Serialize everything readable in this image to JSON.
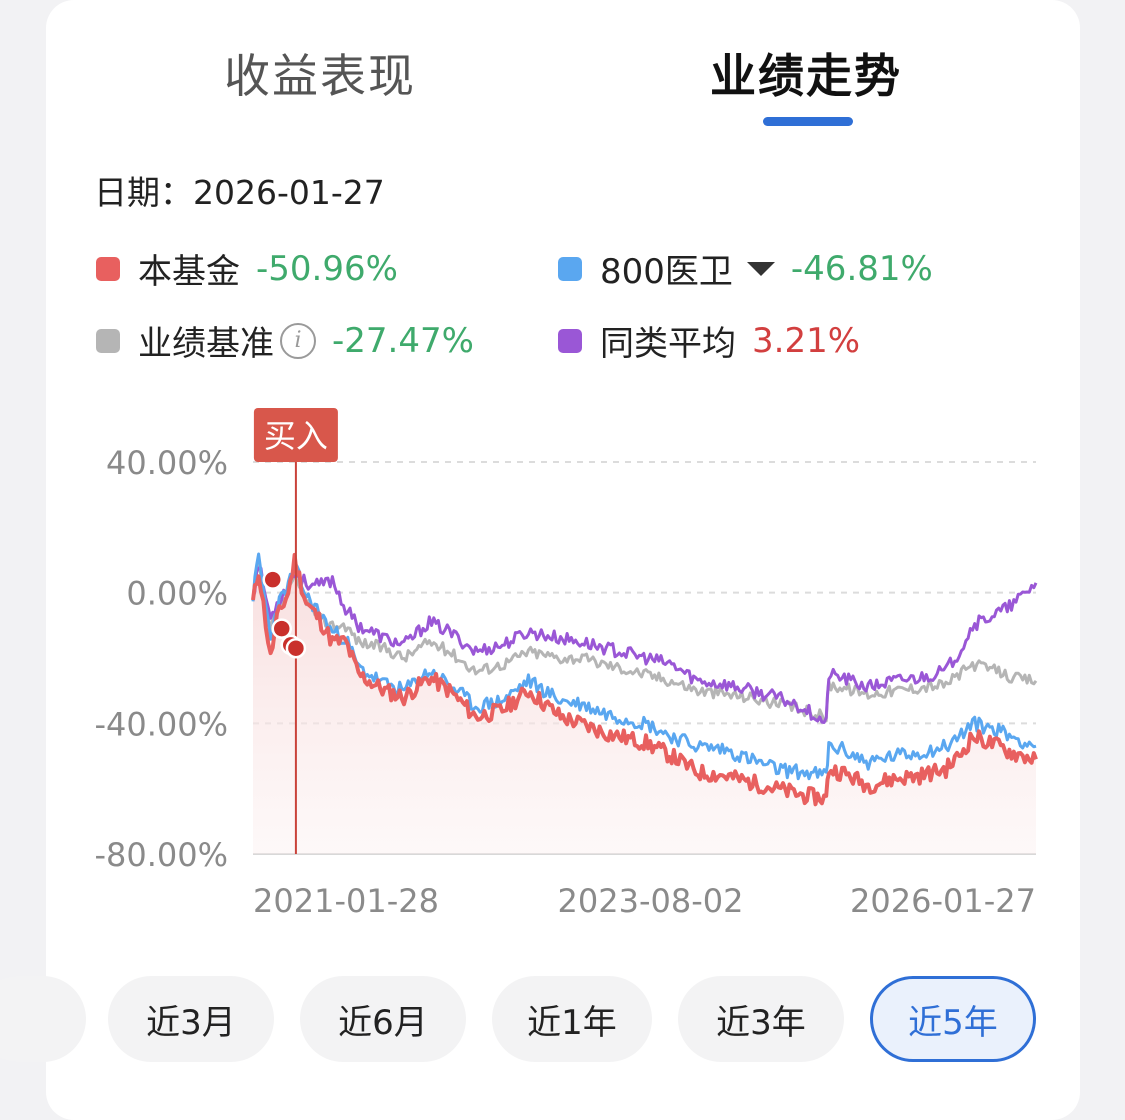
{
  "tabs": [
    {
      "label": "收益表现",
      "active": false
    },
    {
      "label": "业绩走势",
      "active": true
    }
  ],
  "date_label": "日期：",
  "date_value": "2026-01-27",
  "legend": [
    {
      "name": "本基金",
      "value": "-50.96%",
      "color": "#e8605f",
      "trend": "negative"
    },
    {
      "name": "800医卫",
      "value": "-46.81%",
      "color": "#5aa7f0",
      "trend": "negative",
      "has_dropdown": true
    },
    {
      "name": "业绩基准",
      "value": "-27.47%",
      "color": "#b5b5b5",
      "trend": "negative",
      "has_info": true
    },
    {
      "name": "同类平均",
      "value": "3.21%",
      "color": "#9a57d6",
      "trend": "positive"
    }
  ],
  "chart_data": {
    "type": "line",
    "y_tick_labels": [
      "40.00%",
      "0.00%",
      "-40.00%",
      "-80.00%"
    ],
    "x_tick_labels": [
      "2021-01-28",
      "2023-08-02",
      "2026-01-27"
    ],
    "ylim": [
      -80,
      40
    ],
    "xlim": [
      "2021-01-28",
      "2026-01-27"
    ],
    "grid": true,
    "marker_label": "买入",
    "buy_marker_date": "2021-05-08",
    "series": [
      {
        "name": "本基金",
        "color": "#e8605f",
        "x": [
          "2021-01-28",
          "2021-02-10",
          "2021-03-10",
          "2021-03-25",
          "2021-04-20",
          "2021-05-05",
          "2021-06-01",
          "2021-07-01",
          "2021-08-01",
          "2021-09-01",
          "2021-10-01",
          "2021-12-01",
          "2022-01-15",
          "2022-03-15",
          "2022-05-01",
          "2022-07-01",
          "2022-09-01",
          "2022-11-01",
          "2023-01-15",
          "2023-03-01",
          "2023-05-01",
          "2023-08-02",
          "2023-10-01",
          "2023-12-01",
          "2024-02-01",
          "2024-04-01",
          "2024-06-01",
          "2024-08-01",
          "2024-09-25",
          "2024-10-01",
          "2024-11-01",
          "2025-01-01",
          "2025-03-01",
          "2025-05-01",
          "2025-07-01",
          "2025-08-01",
          "2025-09-01",
          "2025-11-01",
          "2025-12-01",
          "2026-01-27"
        ],
        "values": [
          -3,
          7,
          -20,
          -8,
          0,
          10,
          -3,
          -8,
          -15,
          -15,
          -25,
          -30,
          -32,
          -26,
          -30,
          -38,
          -36,
          -30,
          -38,
          -40,
          -43,
          -46,
          -50,
          -55,
          -56,
          -58,
          -60,
          -62,
          -63,
          -54,
          -55,
          -59,
          -57,
          -56,
          -54,
          -50,
          -44,
          -47,
          -49,
          -51
        ]
      },
      {
        "name": "800医卫",
        "color": "#5aa7f0",
        "x": [
          "2021-01-28",
          "2021-02-10",
          "2021-03-10",
          "2021-03-25",
          "2021-04-20",
          "2021-05-05",
          "2021-06-01",
          "2021-07-01",
          "2021-08-01",
          "2021-09-01",
          "2021-10-01",
          "2021-12-01",
          "2022-01-15",
          "2022-03-15",
          "2022-05-01",
          "2022-07-01",
          "2022-09-01",
          "2022-11-01",
          "2023-01-15",
          "2023-03-01",
          "2023-05-01",
          "2023-08-02",
          "2023-10-01",
          "2023-12-01",
          "2024-02-01",
          "2024-04-01",
          "2024-06-01",
          "2024-08-01",
          "2024-09-25",
          "2024-10-01",
          "2024-11-01",
          "2025-01-01",
          "2025-03-01",
          "2025-05-01",
          "2025-07-01",
          "2025-08-01",
          "2025-09-01",
          "2025-11-01",
          "2025-12-01",
          "2026-01-27"
        ],
        "values": [
          -1,
          11,
          -14,
          -4,
          2,
          8,
          -1,
          -6,
          -12,
          -14,
          -23,
          -28,
          -30,
          -24,
          -28,
          -35,
          -33,
          -27,
          -33,
          -34,
          -37,
          -40,
          -44,
          -47,
          -48,
          -51,
          -54,
          -55,
          -56,
          -47,
          -48,
          -52,
          -50,
          -49,
          -47,
          -44,
          -40,
          -42,
          -44,
          -47
        ]
      },
      {
        "name": "业绩基准",
        "color": "#b5b5b5",
        "x": [
          "2021-01-28",
          "2021-02-10",
          "2021-03-10",
          "2021-03-25",
          "2021-04-20",
          "2021-05-05",
          "2021-06-01",
          "2021-07-01",
          "2021-08-01",
          "2021-09-01",
          "2021-10-01",
          "2021-12-01",
          "2022-01-15",
          "2022-03-15",
          "2022-05-01",
          "2022-07-01",
          "2022-09-01",
          "2022-11-01",
          "2023-01-15",
          "2023-03-01",
          "2023-05-01",
          "2023-08-02",
          "2023-10-01",
          "2023-12-01",
          "2024-02-01",
          "2024-04-01",
          "2024-06-01",
          "2024-08-01",
          "2024-09-25",
          "2024-10-01",
          "2024-11-01",
          "2025-01-01",
          "2025-03-01",
          "2025-05-01",
          "2025-07-01",
          "2025-08-01",
          "2025-09-01",
          "2025-11-01",
          "2025-12-01",
          "2026-01-27"
        ],
        "values": [
          -2,
          8,
          -12,
          -5,
          0,
          4,
          -2,
          -8,
          -10,
          -10,
          -15,
          -17,
          -20,
          -15,
          -18,
          -24,
          -22,
          -18,
          -20,
          -20,
          -22,
          -25,
          -27,
          -30,
          -31,
          -32,
          -34,
          -36,
          -38,
          -28,
          -29,
          -31,
          -30,
          -29,
          -28,
          -25,
          -22,
          -24,
          -26,
          -27
        ]
      },
      {
        "name": "同类平均",
        "color": "#9a57d6",
        "x": [
          "2021-01-28",
          "2021-02-10",
          "2021-03-10",
          "2021-03-25",
          "2021-04-20",
          "2021-05-05",
          "2021-06-01",
          "2021-07-01",
          "2021-08-01",
          "2021-09-01",
          "2021-10-01",
          "2021-12-01",
          "2022-01-15",
          "2022-03-15",
          "2022-05-01",
          "2022-07-01",
          "2022-09-01",
          "2022-11-01",
          "2023-01-15",
          "2023-03-01",
          "2023-05-01",
          "2023-08-02",
          "2023-10-01",
          "2023-12-01",
          "2024-02-01",
          "2024-04-01",
          "2024-06-01",
          "2024-08-01",
          "2024-09-25",
          "2024-10-01",
          "2024-11-01",
          "2025-01-01",
          "2025-03-01",
          "2025-05-01",
          "2025-07-01",
          "2025-08-01",
          "2025-09-01",
          "2025-11-01",
          "2025-12-01",
          "2026-01-27"
        ],
        "values": [
          -1,
          9,
          -8,
          -3,
          2,
          6,
          3,
          2,
          4,
          -5,
          -10,
          -14,
          -16,
          -9,
          -12,
          -18,
          -16,
          -12,
          -14,
          -15,
          -17,
          -20,
          -22,
          -27,
          -28,
          -30,
          -32,
          -35,
          -40,
          -25,
          -26,
          -29,
          -27,
          -26,
          -24,
          -18,
          -10,
          -6,
          -4,
          3
        ]
      }
    ],
    "markers": [
      {
        "series": "本基金",
        "x": "2021-03-15",
        "y": 4
      },
      {
        "series": "本基金",
        "x": "2021-04-05",
        "y": -11
      },
      {
        "series": "本基金",
        "x": "2021-04-26",
        "y": -16
      },
      {
        "series": "本基金",
        "x": "2021-05-08",
        "y": -17
      }
    ]
  },
  "range_buttons": [
    {
      "label": "近3月",
      "selected": false
    },
    {
      "label": "近6月",
      "selected": false
    },
    {
      "label": "近1年",
      "selected": false
    },
    {
      "label": "近3年",
      "selected": false
    },
    {
      "label": "近5年",
      "selected": true
    }
  ]
}
